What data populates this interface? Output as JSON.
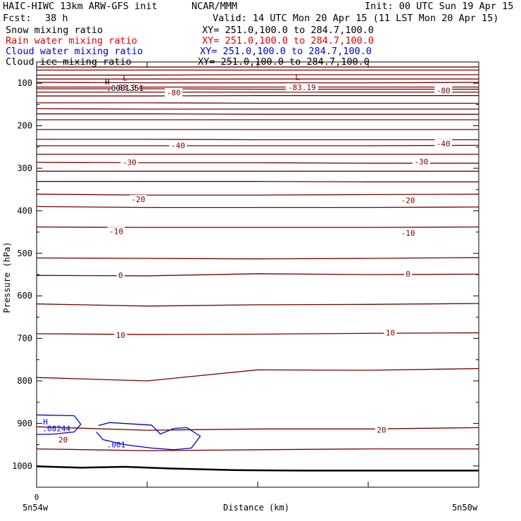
{
  "header": {
    "title": "HAIC-HIWC 13km ARW-GFS init",
    "org": "NCAR/MMM",
    "init": "Init: 00 UTC Sun 19 Apr 15",
    "fcst_label": "Fcst:",
    "fcst_value": "38 h",
    "valid": "Valid: 14 UTC Mon 20 Apr 15 (11 LST Mon 20 Apr 15)"
  },
  "fields": [
    {
      "name": "Snow mixing ratio",
      "xy": "XY= 251.0,100.0 to 284.7,100.0",
      "color": "#000000"
    },
    {
      "name": "Rain water mixing ratio",
      "xy": "XY= 251.0,100.0 to 284.7,100.0",
      "color": "#e00000"
    },
    {
      "name": "Cloud water mixing ratio",
      "xy": "XY= 251.0,100.0 to 284.7,100.0",
      "color": "#0000c8"
    },
    {
      "name": "Cloud ice mixing ratio",
      "xy": "XY= 251.0,100.0 to 284.7,100.0",
      "color": "#000000"
    }
  ],
  "chart_data": {
    "type": "line",
    "ylabel": "Pressure (hPa)",
    "xlabel": "Distance (km)",
    "x_left_label": "5n54w",
    "x_right_label": "5n50w",
    "x_zero_label": "0",
    "ylim": [
      1050,
      50
    ],
    "yticks": [
      100,
      200,
      300,
      400,
      500,
      600,
      700,
      800,
      900,
      1000
    ],
    "ytick_labels": [
      "100",
      "200",
      "300",
      "400",
      "500",
      "600",
      "700",
      "800",
      "900",
      "1000"
    ],
    "x": [
      0,
      0.25,
      0.5,
      0.75,
      1.0
    ],
    "temperature_color": "#780000",
    "cloud_color": "#0000c8",
    "isotherms": [
      {
        "values": [
          62,
          62,
          62,
          62,
          62
        ]
      },
      {
        "values": [
          69,
          69,
          69,
          69,
          69
        ]
      },
      {
        "values": [
          81,
          81,
          80,
          80,
          80
        ]
      },
      {
        "values": [
          90,
          90,
          90,
          90,
          90
        ]
      },
      {
        "values": [
          98,
          99,
          99,
          99,
          98
        ]
      },
      {
        "values": [
          109,
          109,
          109,
          109,
          109
        ]
      },
      {
        "values": [
          113,
          113,
          114,
          114,
          114
        ]
      },
      {
        "values": [
          121,
          121,
          121,
          121,
          121
        ]
      },
      {
        "values": [
          130,
          130,
          129,
          129,
          129
        ]
      },
      {
        "values": [
          146,
          146,
          147,
          147,
          147
        ]
      },
      {
        "values": [
          160,
          161,
          161,
          161,
          161
        ]
      },
      {
        "values": [
          172,
          172,
          173,
          173,
          173
        ]
      },
      {
        "values": [
          186,
          186,
          186,
          186,
          186
        ]
      },
      {
        "values": [
          209,
          209,
          209,
          209,
          209
        ]
      },
      {
        "values": [
          232,
          232,
          233,
          233,
          233
        ]
      },
      {
        "values": [
          247,
          247,
          247,
          247,
          246
        ]
      },
      {
        "values": [
          267,
          267,
          267,
          267,
          267
        ]
      },
      {
        "values": [
          286,
          287,
          287,
          288,
          288
        ]
      },
      {
        "values": [
          307,
          307,
          307,
          307,
          307
        ]
      },
      {
        "values": [
          331,
          331,
          331,
          332,
          332
        ]
      },
      {
        "values": [
          361,
          363,
          363,
          362,
          361
        ]
      },
      {
        "values": [
          390,
          392,
          392,
          392,
          391
        ]
      },
      {
        "values": [
          438,
          439,
          439,
          439,
          438
        ]
      },
      {
        "values": [
          511,
          512,
          513,
          512,
          510
        ]
      },
      {
        "values": [
          552,
          553,
          548,
          550,
          549
        ]
      },
      {
        "values": [
          619,
          624,
          621,
          620,
          618
        ]
      },
      {
        "values": [
          689,
          691,
          690,
          688,
          687
        ]
      },
      {
        "values": [
          792,
          800,
          774,
          775,
          771
        ]
      },
      {
        "values": [
          908,
          916,
          913,
          913,
          910
        ]
      },
      {
        "values": [
          960,
          964,
          962,
          960,
          960
        ]
      }
    ],
    "ground": {
      "x": [
        0,
        0.1,
        0.2,
        0.3,
        0.45,
        0.6,
        0.8,
        1.0
      ],
      "values": [
        1001,
        1004,
        1002,
        1006,
        1010,
        1011,
        1011,
        1011
      ]
    },
    "contour_labels": [
      {
        "text": "-83.3",
        "x": 0.2,
        "p": 110
      },
      {
        "text": "-80",
        "x": 0.31,
        "p": 122
      },
      {
        "text": "-83.19",
        "x": 0.6,
        "p": 110
      },
      {
        "text": "-80",
        "x": 0.92,
        "p": 117
      },
      {
        "text": "-40",
        "x": 0.32,
        "p": 246
      },
      {
        "text": "-40",
        "x": 0.92,
        "p": 242
      },
      {
        "text": "-30",
        "x": 0.21,
        "p": 286
      },
      {
        "text": "-30",
        "x": 0.87,
        "p": 284
      },
      {
        "text": "-20",
        "x": 0.23,
        "p": 373
      },
      {
        "text": "-20",
        "x": 0.84,
        "p": 375
      },
      {
        "text": "-10",
        "x": 0.18,
        "p": 448
      },
      {
        "text": "-10",
        "x": 0.84,
        "p": 452
      },
      {
        "text": "0",
        "x": 0.19,
        "p": 552
      },
      {
        "text": "0",
        "x": 0.84,
        "p": 548
      },
      {
        "text": "10",
        "x": 0.19,
        "p": 692
      },
      {
        "text": "10",
        "x": 0.8,
        "p": 687
      },
      {
        "text": "20",
        "x": 0.06,
        "p": 938
      },
      {
        "text": "20",
        "x": 0.78,
        "p": 915
      }
    ],
    "extrema": [
      {
        "text": "L",
        "x": 0.2,
        "p": 87
      },
      {
        "text": "L",
        "x": 0.59,
        "p": 86
      },
      {
        "text": "H",
        "x": 0.16,
        "p": 97
      },
      {
        "text": ".0001351",
        "x": 0.2,
        "p": 111
      },
      {
        "text": "H",
        "x": 0.02,
        "p": 896
      },
      {
        "text": ".08244",
        "x": 0.045,
        "p": 912
      },
      {
        "text": ".001",
        "x": 0.18,
        "p": 950
      }
    ],
    "cloud_contours": [
      {
        "points": [
          [
            0,
            880
          ],
          [
            0.085,
            882
          ],
          [
            0.1,
            902
          ],
          [
            0.085,
            920
          ],
          [
            0.04,
            925
          ],
          [
            0,
            926
          ]
        ]
      },
      {
        "points": [
          [
            0.14,
            905
          ],
          [
            0.165,
            898
          ],
          [
            0.26,
            904
          ],
          [
            0.28,
            925
          ],
          [
            0.31,
            912
          ],
          [
            0.34,
            910
          ],
          [
            0.37,
            930
          ],
          [
            0.35,
            958
          ],
          [
            0.31,
            962
          ],
          [
            0.26,
            958
          ],
          [
            0.2,
            950
          ],
          [
            0.15,
            938
          ],
          [
            0.135,
            920
          ]
        ]
      }
    ]
  }
}
